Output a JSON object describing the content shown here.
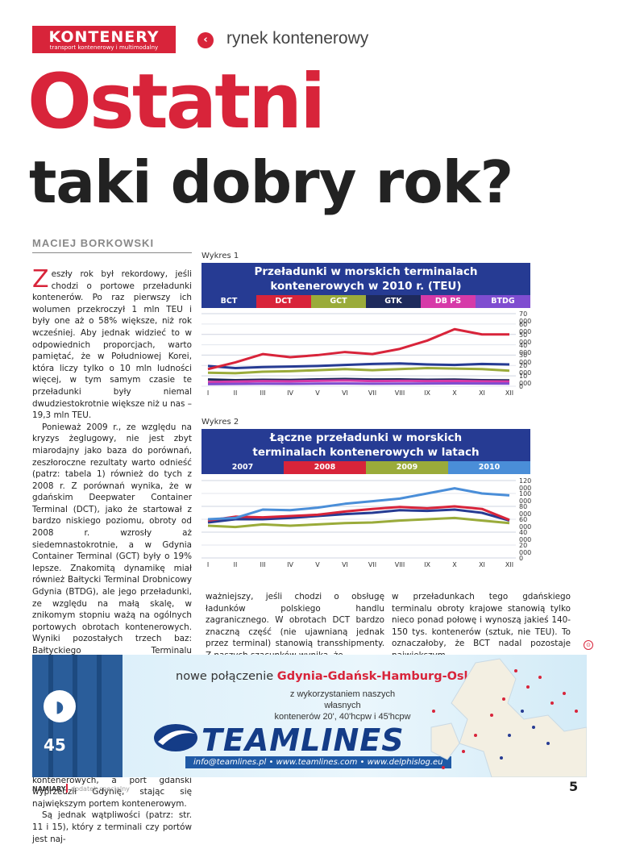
{
  "header": {
    "brand": "KONTENERY",
    "brand_sub": "transport kontenerowy i multimodalny",
    "back_icon": "chevron-left-icon",
    "section": "rynek kontenerowy"
  },
  "title": {
    "line1": "Ostatni",
    "line2": "taki dobry rok?"
  },
  "article": {
    "author": "MACIEJ BORKOWSKI",
    "dropcap": "Z",
    "col1": [
      "eszły rok był rekordowy, jeśli chodzi o portowe przeładunki kontenerów. Po raz pierwszy ich wolumen przekroczył 1 mln TEU i były one aż o 58% większe, niż rok wcześniej. Aby jednak widzieć to w odpowiednich proporcjach, warto pamiętać, że w Południowej Korei, która liczy tylko o 10 mln ludności więcej, w tym samym czasie te przeładunki były niemal dwudziestokrotnie większe niż u nas – 19,3 mln TEU.",
      "Ponieważ 2009 r., ze względu na kryzys żeglugowy, nie jest zbyt miarodajny jako baza do porównań, zeszłoroczne rezultaty warto odnieść (patrz: tabela 1) również do tych z 2008 r. Z porównań wynika, że w gdańskim Deepwater Container Terminal (DCT), jako że startował z bardzo niskiego poziomu, obroty od 2008 r. wzrosły aż siedemnastokrotnie, a w Gdynia Container Terminal (GCT) były o 19% lepsze. Znakomitą dynamikę miał również Bałtycki Terminal Drobnicowy Gdynia (BTDG), ale jego przeładunki, ze względu na małą skalę, w znikomym stopniu ważą na ogólnych portowych obrotach kontenerowych. Wyniki pozostałych trzech baz: Bałtyckiego Terminalu Kontenerowego (BCT), Gdańskiego Terminalu Kontenerowego (GTK) i DB Port Szczecin (DB PS) były niższe od tych z 2008 r. o odpowiednio: 36%, 20% i 9%.",
      "Regularne, co tydzień, pojawianie się w DCT oceanicznych statków Maersk Line, o pojemności 8 tys. TEU, spowodowało, że wysunął się on na pierwsze miejsce wśród terminali kontenerowych, a port gdański wyprzedził Gdynię, stając się największym portem kontenerowym.",
      "Są jednak wątpliwości (patrz: str. 11 i 15), który z terminali czy portów jest naj-"
    ],
    "col2": "ważniejszy, jeśli chodzi o obsługę ładunków polskiego handlu zagranicznego. W obrotach DCT bardzo znaczną część (nie ujawnianą jednak przez terminal) stanowią transshipmenty. Z naszych szacunków wynika, że",
    "col3": "w przeładunkach tego gdańskiego terminalu obroty krajowe stanowią tylko nieco ponad połowę i wynoszą jakieś 140-150 tys. kontenerów (sztuk, nie TEU). To oznaczałoby, że BCT nadal pozostaje największym",
    "end_mark": "⊙"
  },
  "chart_data": [
    {
      "type": "line",
      "label": "Wykres 1",
      "title": "Przeładunki w morskich terminalach kontenerowych w 2010 r. (TEU)",
      "categories": [
        "I",
        "II",
        "III",
        "IV",
        "V",
        "VI",
        "VII",
        "VIII",
        "IX",
        "X",
        "XI",
        "XII"
      ],
      "ylim": [
        0,
        70000
      ],
      "yticks": [
        "70 000",
        "60 000",
        "50 000",
        "40 000",
        "30 000",
        "20 000",
        "10 000",
        "0"
      ],
      "legend_position": "top",
      "series": [
        {
          "name": "BCT",
          "color": "#263b93",
          "values": [
            19500,
            17500,
            18500,
            19000,
            19500,
            20500,
            21500,
            22000,
            21000,
            20500,
            21500,
            21000
          ]
        },
        {
          "name": "DCT",
          "color": "#d8243a",
          "values": [
            16500,
            23000,
            31000,
            28000,
            30000,
            33000,
            31000,
            36000,
            44000,
            55000,
            50000,
            50000
          ]
        },
        {
          "name": "GCT",
          "color": "#9aab3a",
          "values": [
            13000,
            12500,
            14000,
            14500,
            15500,
            16500,
            15500,
            16500,
            17500,
            17000,
            16500,
            15000
          ]
        },
        {
          "name": "GTK",
          "color": "#1e2a5c",
          "values": [
            6500,
            5800,
            6200,
            6000,
            6600,
            7000,
            6500,
            6600,
            6200,
            6400,
            5800,
            5600
          ]
        },
        {
          "name": "DB PS",
          "color": "#d63aa8",
          "values": [
            4000,
            4500,
            5000,
            4800,
            5200,
            5500,
            5000,
            5200,
            5000,
            5200,
            4800,
            4600
          ]
        },
        {
          "name": "BTDG",
          "color": "#7f4dd0",
          "values": [
            2000,
            2200,
            2400,
            2300,
            2500,
            2600,
            2400,
            2500,
            2600,
            2700,
            2600,
            2500
          ]
        }
      ]
    },
    {
      "type": "line",
      "label": "Wykres 2",
      "title": "Łączne przeładunki w morskich terminalach kontenerowych w latach 2007-2010 (TEU)",
      "categories": [
        "I",
        "II",
        "III",
        "IV",
        "V",
        "VI",
        "VII",
        "VIII",
        "IX",
        "X",
        "XI",
        "XII"
      ],
      "ylim": [
        0,
        120000
      ],
      "yticks": [
        "120 000",
        "100 000",
        "80 000",
        "60 000",
        "40 000",
        "20 000",
        "0"
      ],
      "legend_position": "top",
      "series": [
        {
          "name": "2007",
          "color": "#263b93",
          "values": [
            55000,
            60000,
            60000,
            62000,
            65000,
            68000,
            70000,
            74000,
            73000,
            75000,
            70000,
            58000
          ]
        },
        {
          "name": "2008",
          "color": "#d8243a",
          "values": [
            58000,
            64000,
            63000,
            65000,
            67000,
            72000,
            76000,
            79000,
            77000,
            80000,
            76000,
            59000
          ]
        },
        {
          "name": "2009",
          "color": "#9aab3a",
          "values": [
            50000,
            48000,
            52000,
            50000,
            52000,
            54000,
            55000,
            58000,
            60000,
            62000,
            58000,
            54000
          ]
        },
        {
          "name": "2010",
          "color": "#4a8ed8",
          "values": [
            60000,
            62000,
            75000,
            74000,
            78000,
            84000,
            88000,
            92000,
            100000,
            108000,
            100000,
            97000
          ]
        }
      ]
    }
  ],
  "ad": {
    "headline_prefix": "nowe połączenie ",
    "headline_route": "Gdynia-Gdańsk-Hamburg-Oslo",
    "sub_line1": "z wykorzystaniem naszych własnych",
    "sub_line2": "kontenerów 20', 40'hcpw i 45'hcpw",
    "logo_team": "TEAM",
    "logo_lines": "LINES",
    "contact": "info@teamlines.pl • www.teamlines.com • www.delphislog.eu",
    "container_code": "45",
    "logo_icon": "dolphin-icon"
  },
  "footer": {
    "brand": "NAMIARY",
    "sub": "dodatek specjalny",
    "page": "5"
  }
}
